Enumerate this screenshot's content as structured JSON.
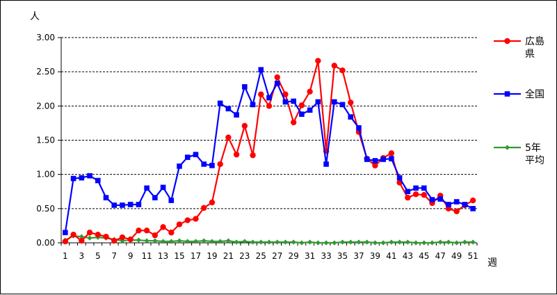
{
  "chart_data": {
    "type": "line",
    "title": "",
    "xlabel": "週",
    "ylabel": "人",
    "ylim": [
      0,
      3.0
    ],
    "yticks": [
      0,
      0.5,
      1.0,
      1.5,
      2.0,
      2.5,
      3.0
    ],
    "ytick_labels": [
      "0.00",
      "0.50",
      "1.00",
      "1.50",
      "2.00",
      "2.50",
      "3.00"
    ],
    "x": [
      1,
      2,
      3,
      4,
      5,
      6,
      7,
      8,
      9,
      10,
      11,
      12,
      13,
      14,
      15,
      16,
      17,
      18,
      19,
      20,
      21,
      22,
      23,
      24,
      25,
      26,
      27,
      28,
      29,
      30,
      31,
      32,
      33,
      34,
      35,
      36,
      37,
      38,
      39,
      40,
      41,
      42,
      43,
      44,
      45,
      46,
      47,
      48,
      49,
      50,
      51
    ],
    "xtick_labels": [
      "1",
      "3",
      "5",
      "7",
      "9",
      "11",
      "13",
      "15",
      "17",
      "19",
      "21",
      "23",
      "25",
      "27",
      "29",
      "31",
      "33",
      "35",
      "37",
      "39",
      "41",
      "43",
      "45",
      "47",
      "49",
      "51"
    ],
    "grid": "horizontal dashed",
    "legend_position": "right",
    "series": [
      {
        "name": "広島県",
        "color": "#ff0000",
        "marker": "circle",
        "values": [
          0.02,
          0.12,
          0.03,
          0.15,
          0.12,
          0.09,
          0.03,
          0.08,
          0.05,
          0.18,
          0.18,
          0.11,
          0.23,
          0.15,
          0.27,
          0.33,
          0.35,
          0.51,
          0.59,
          1.15,
          1.54,
          1.29,
          1.71,
          1.28,
          2.17,
          2.0,
          2.42,
          2.17,
          1.76,
          2.01,
          2.21,
          2.66,
          1.34,
          2.59,
          2.52,
          2.05,
          1.62,
          1.23,
          1.13,
          1.24,
          1.31,
          0.88,
          0.66,
          0.71,
          0.7,
          0.58,
          0.69,
          0.5,
          0.46,
          0.55,
          0.62
        ]
      },
      {
        "name": "全国",
        "color": "#0000ff",
        "marker": "square",
        "values": [
          0.15,
          0.94,
          0.95,
          0.98,
          0.91,
          0.66,
          0.55,
          0.55,
          0.56,
          0.56,
          0.8,
          0.66,
          0.81,
          0.62,
          1.12,
          1.25,
          1.29,
          1.15,
          1.13,
          2.04,
          1.96,
          1.87,
          2.28,
          2.02,
          2.53,
          2.12,
          2.33,
          2.06,
          2.07,
          1.88,
          1.94,
          2.06,
          1.15,
          2.06,
          2.02,
          1.84,
          1.68,
          1.22,
          1.2,
          1.22,
          1.23,
          0.95,
          0.75,
          0.8,
          0.8,
          0.63,
          0.64,
          0.56,
          0.6,
          0.56,
          0.5
        ]
      },
      {
        "name": "5年平均",
        "color": "#339933",
        "marker": "diamond",
        "values": [
          0.04,
          0.1,
          0.09,
          0.07,
          0.08,
          0.07,
          0.05,
          0.03,
          0.04,
          0.04,
          0.03,
          0.03,
          0.02,
          0.02,
          0.03,
          0.02,
          0.02,
          0.03,
          0.02,
          0.02,
          0.03,
          0.01,
          0.02,
          0.01,
          0.01,
          0.01,
          0.01,
          0.01,
          0.01,
          0.0,
          0.01,
          0.0,
          0.0,
          0.0,
          0.01,
          0.01,
          0.01,
          0.01,
          0.0,
          0.0,
          0.01,
          0.01,
          0.01,
          0.0,
          0.0,
          0.0,
          0.01,
          0.01,
          0.0,
          0.01,
          0.01
        ]
      }
    ],
    "legend": [
      {
        "label_lines": [
          "広島",
          "県"
        ]
      },
      {
        "label_lines": [
          "全国"
        ]
      },
      {
        "label_lines": [
          "5年",
          "平均"
        ]
      }
    ]
  }
}
